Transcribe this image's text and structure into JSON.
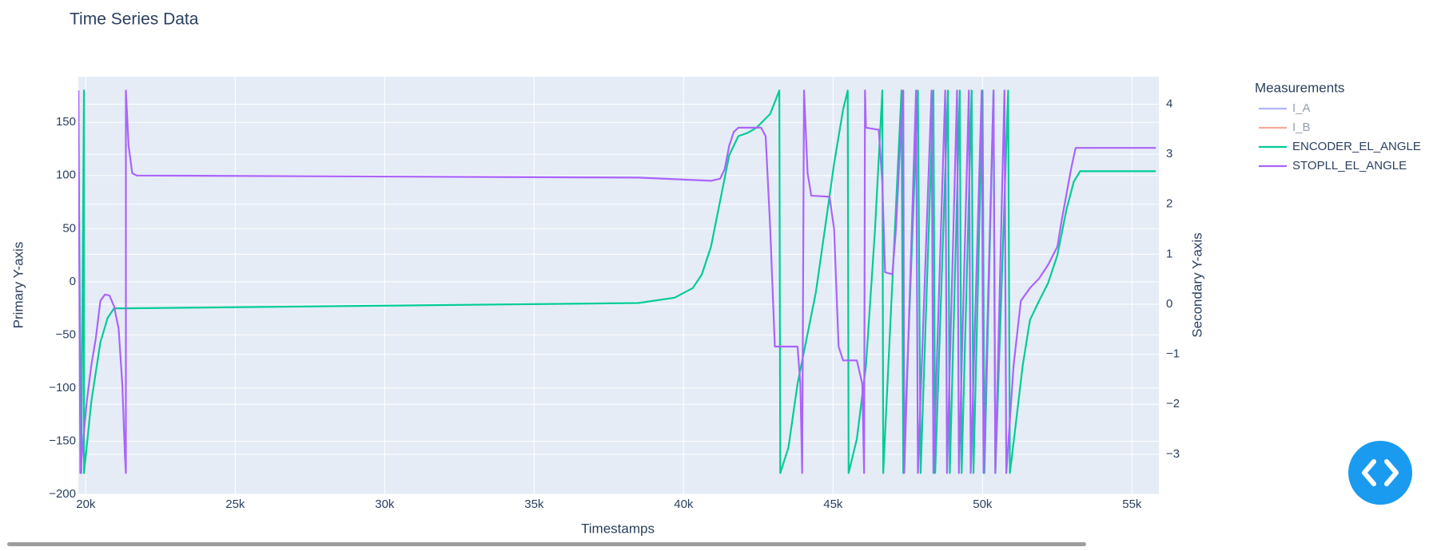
{
  "chart_data": {
    "type": "line",
    "title": "Time Series Data",
    "x_label": "Timestamps",
    "y_label": "Primary Y-axis",
    "y2_label": "Secondary Y-axis",
    "legend_title": "Measurements",
    "legend": "right",
    "grid": true,
    "xlim": [
      19750,
      55900
    ],
    "xticks": [
      {
        "value": 20000,
        "label": "20k"
      },
      {
        "value": 25000,
        "label": "25k"
      },
      {
        "value": 30000,
        "label": "30k"
      },
      {
        "value": 35000,
        "label": "35k"
      },
      {
        "value": 40000,
        "label": "40k"
      },
      {
        "value": 45000,
        "label": "45k"
      },
      {
        "value": 50000,
        "label": "50k"
      },
      {
        "value": 55000,
        "label": "55k"
      }
    ],
    "ylim": [
      -200,
      193
    ],
    "yticks": [
      {
        "value": -200,
        "label": "−200"
      },
      {
        "value": -150,
        "label": "−150"
      },
      {
        "value": -100,
        "label": "−100"
      },
      {
        "value": -50,
        "label": "−50"
      },
      0,
      50,
      100,
      150
    ],
    "y2lim": [
      -3.8,
      4.55
    ],
    "y2ticks": [
      {
        "value": -3,
        "label": "−3"
      },
      {
        "value": -2,
        "label": "−2"
      },
      {
        "value": -1,
        "label": "−1"
      },
      0,
      1,
      2,
      3,
      4
    ],
    "series": [
      {
        "name": "I_A",
        "color": "#636efa",
        "axis": "y2",
        "visible": "legendonly"
      },
      {
        "name": "I_B",
        "color": "#ef553b",
        "axis": "y2",
        "visible": "legendonly"
      },
      {
        "name": "ENCODER_EL_ANGLE",
        "color": "#00cc96",
        "x": [
          19756,
          19848,
          19939,
          19939,
          20183,
          20488,
          20732,
          20945,
          21342,
          38477,
          39697,
          40306,
          40611,
          40916,
          41221,
          41525,
          41830,
          42136,
          42441,
          42898,
          43203,
          43234,
          43508,
          43813,
          44118,
          44423,
          44728,
          45033,
          45337,
          45490,
          45521,
          45795,
          46100,
          46405,
          46649,
          46679,
          47289,
          47350,
          47838,
          47929,
          48356,
          48417,
          48844,
          48905,
          49240,
          49301,
          49637,
          49697,
          50002,
          50063,
          50368,
          50429,
          50856,
          50917,
          51130,
          51344,
          51588,
          51893,
          52198,
          52503,
          52808,
          53052,
          53264,
          55795
        ],
        "values": [
          128,
          -180,
          180,
          -180,
          -113,
          -57,
          -34,
          -25,
          -25,
          -20,
          -15,
          -6,
          7,
          33,
          76,
          119,
          137,
          140,
          145,
          158,
          180,
          -180,
          -156,
          -96,
          -53,
          -10,
          50,
          111,
          162,
          180,
          -180,
          -148,
          -79,
          50,
          180,
          -180,
          180,
          -180,
          180,
          -180,
          180,
          -180,
          180,
          -180,
          180,
          -180,
          180,
          -180,
          180,
          -180,
          180,
          -180,
          180,
          -180,
          -130,
          -79,
          -36,
          -18,
          -1,
          25,
          68,
          94,
          104,
          104
        ]
      },
      {
        "name": "STOPLL_EL_ANGLE",
        "color": "#ab63fa",
        "x": [
          19756,
          19817,
          20030,
          20183,
          20335,
          20488,
          20640,
          20793,
          20945,
          21098,
          21220,
          21311,
          21342,
          21342,
          21433,
          21555,
          21707,
          38477,
          40916,
          41221,
          41374,
          41525,
          41678,
          41830,
          42593,
          42746,
          42898,
          43051,
          43203,
          43813,
          43905,
          43966,
          44027,
          44149,
          44271,
          44880,
          45033,
          45185,
          45337,
          45795,
          45978,
          46039,
          46069,
          46100,
          46527,
          46649,
          46740,
          46984,
          47106,
          47258,
          47350,
          47380,
          47777,
          47838,
          48295,
          48356,
          48752,
          48813,
          49149,
          49210,
          49545,
          49606,
          49972,
          50033,
          50368,
          50429,
          50734,
          50795,
          51039,
          51283,
          51588,
          51893,
          52198,
          52503,
          52656,
          52961,
          53113,
          53418,
          55795
        ],
        "values": [
          180,
          -180,
          -113,
          -79,
          -53,
          -18,
          -12,
          -13,
          -23,
          -44,
          -96,
          -165,
          -180,
          180,
          128,
          102,
          100,
          98,
          95,
          97,
          106,
          128,
          141,
          145,
          145,
          137,
          50,
          -61,
          -61,
          -61,
          -96,
          -180,
          180,
          102,
          81,
          80,
          50,
          -61,
          -74,
          -74,
          -96,
          -180,
          180,
          145,
          143,
          93,
          9,
          7,
          50,
          137,
          180,
          -180,
          180,
          -180,
          180,
          -180,
          180,
          -180,
          180,
          -180,
          180,
          -180,
          180,
          -180,
          180,
          -180,
          180,
          -180,
          -79,
          -18,
          -6,
          3,
          16,
          33,
          59,
          106,
          126,
          126,
          126
        ]
      }
    ]
  }
}
